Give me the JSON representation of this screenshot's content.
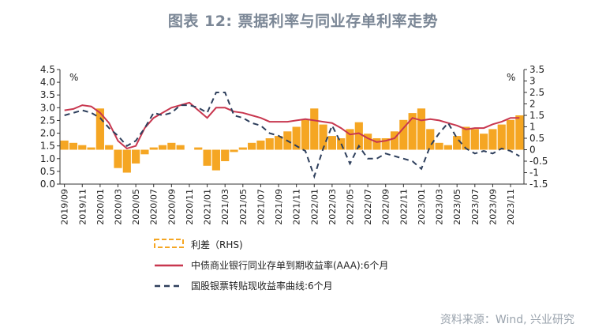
{
  "header": {
    "title": "图表 12: 票据利率与同业存单利率走势"
  },
  "footer": {
    "source": "资料来源：Wind, 兴业研究"
  },
  "chart_data": {
    "type": "line",
    "left_unit": "%",
    "right_unit": "%",
    "left_axis": {
      "min": 0,
      "max": 4.5,
      "ticks": [
        "0.0",
        "0.5",
        "1.0",
        "1.5",
        "2.0",
        "2.5",
        "3.0",
        "3.5",
        "4.0",
        "4.5"
      ]
    },
    "right_axis": {
      "min": -1.5,
      "max": 3.5,
      "ticks": [
        "-1.5",
        "-1",
        "-0.5",
        "0",
        "0.5",
        "1",
        "1.5",
        "2",
        "2.5",
        "3",
        "3.5"
      ]
    },
    "x_ticks": [
      "2019/09",
      "2019/11",
      "2020/01",
      "2020/03",
      "2020/05",
      "2020/07",
      "2020/09",
      "2020/11",
      "2021/01",
      "2021/03",
      "2021/05",
      "2021/07",
      "2021/09",
      "2021/11",
      "2022/01",
      "2022/03",
      "2022/05",
      "2022/07",
      "2022/09",
      "2022/11",
      "2023/01",
      "2023/03",
      "2023/05",
      "2023/07",
      "2023/09",
      "2023/11"
    ],
    "x_range": [
      "2019/09",
      "2023/12"
    ],
    "colors": {
      "spread": "#f5a623",
      "cd": "#c8374f",
      "bill": "#2e3f5c"
    },
    "series": [
      {
        "name": "利差（RHS)",
        "axis": "right",
        "style": "bar",
        "x": [
          "2019/09",
          "2019/10",
          "2019/11",
          "2019/12",
          "2020/01",
          "2020/02",
          "2020/03",
          "2020/04",
          "2020/05",
          "2020/06",
          "2020/07",
          "2020/08",
          "2020/09",
          "2020/10",
          "2020/11",
          "2020/12",
          "2021/01",
          "2021/02",
          "2021/03",
          "2021/04",
          "2021/05",
          "2021/06",
          "2021/07",
          "2021/08",
          "2021/09",
          "2021/10",
          "2021/11",
          "2021/12",
          "2022/01",
          "2022/02",
          "2022/03",
          "2022/04",
          "2022/05",
          "2022/06",
          "2022/07",
          "2022/08",
          "2022/09",
          "2022/10",
          "2022/11",
          "2022/12",
          "2023/01",
          "2023/02",
          "2023/03",
          "2023/04",
          "2023/05",
          "2023/06",
          "2023/07",
          "2023/08",
          "2023/09",
          "2023/10",
          "2023/11",
          "2023/12"
        ],
        "values": [
          0.4,
          0.3,
          0.2,
          0.1,
          1.8,
          0.2,
          -0.8,
          -1.0,
          -0.6,
          -0.2,
          0.1,
          0.2,
          0.3,
          0.2,
          0.0,
          0.1,
          -0.7,
          -0.9,
          -0.5,
          -0.1,
          0.1,
          0.3,
          0.4,
          0.5,
          0.6,
          0.8,
          1.0,
          1.3,
          1.8,
          1.1,
          0.6,
          0.5,
          0.9,
          1.2,
          0.7,
          0.5,
          0.5,
          0.8,
          1.3,
          1.6,
          1.8,
          0.9,
          0.3,
          0.2,
          0.6,
          1.0,
          0.9,
          0.7,
          0.9,
          1.1,
          1.3,
          1.5
        ]
      },
      {
        "name": "中债商业银行同业存单到期收益率(AAA):6个月",
        "axis": "left",
        "style": "line",
        "x": [
          "2019/09",
          "2019/10",
          "2019/11",
          "2019/12",
          "2020/01",
          "2020/02",
          "2020/03",
          "2020/04",
          "2020/05",
          "2020/06",
          "2020/07",
          "2020/08",
          "2020/09",
          "2020/10",
          "2020/11",
          "2020/12",
          "2021/01",
          "2021/02",
          "2021/03",
          "2021/04",
          "2021/05",
          "2021/06",
          "2021/07",
          "2021/08",
          "2021/09",
          "2021/10",
          "2021/11",
          "2021/12",
          "2022/01",
          "2022/02",
          "2022/03",
          "2022/04",
          "2022/05",
          "2022/06",
          "2022/07",
          "2022/08",
          "2022/09",
          "2022/10",
          "2022/11",
          "2022/12",
          "2023/01",
          "2023/02",
          "2023/03",
          "2023/04",
          "2023/05",
          "2023/06",
          "2023/07",
          "2023/08",
          "2023/09",
          "2023/10",
          "2023/11",
          "2023/12"
        ],
        "values": [
          2.9,
          2.95,
          3.1,
          3.05,
          2.8,
          2.4,
          1.7,
          1.4,
          1.5,
          2.2,
          2.6,
          2.8,
          3.0,
          3.1,
          3.2,
          2.9,
          2.6,
          3.0,
          3.0,
          2.85,
          2.8,
          2.7,
          2.6,
          2.45,
          2.45,
          2.45,
          2.5,
          2.55,
          2.5,
          2.45,
          2.4,
          2.2,
          1.95,
          2.0,
          1.8,
          1.65,
          1.7,
          1.8,
          2.2,
          2.6,
          2.5,
          2.55,
          2.5,
          2.4,
          2.3,
          2.15,
          2.2,
          2.2,
          2.35,
          2.45,
          2.6,
          2.6
        ]
      },
      {
        "name": "国股银票转贴现收益率曲线:6个月",
        "axis": "left",
        "style": "dashed",
        "x": [
          "2019/09",
          "2019/10",
          "2019/11",
          "2019/12",
          "2020/01",
          "2020/02",
          "2020/03",
          "2020/04",
          "2020/05",
          "2020/06",
          "2020/07",
          "2020/08",
          "2020/09",
          "2020/10",
          "2020/11",
          "2020/12",
          "2021/01",
          "2021/02",
          "2021/03",
          "2021/04",
          "2021/05",
          "2021/06",
          "2021/07",
          "2021/08",
          "2021/09",
          "2021/10",
          "2021/11",
          "2021/12",
          "2022/01",
          "2022/02",
          "2022/03",
          "2022/04",
          "2022/05",
          "2022/06",
          "2022/07",
          "2022/08",
          "2022/09",
          "2022/10",
          "2022/11",
          "2022/12",
          "2023/01",
          "2023/02",
          "2023/03",
          "2023/04",
          "2023/05",
          "2023/06",
          "2023/07",
          "2023/08",
          "2023/09",
          "2023/10",
          "2023/11",
          "2023/12"
        ],
        "values": [
          2.7,
          2.8,
          2.9,
          2.8,
          2.6,
          2.2,
          1.9,
          1.5,
          1.7,
          2.2,
          2.8,
          2.7,
          2.8,
          3.1,
          3.1,
          3.0,
          2.8,
          3.6,
          3.6,
          2.7,
          2.6,
          2.4,
          2.3,
          2.0,
          1.9,
          1.7,
          1.5,
          1.3,
          0.3,
          1.4,
          2.3,
          1.6,
          0.8,
          1.5,
          1.0,
          1.0,
          1.2,
          1.1,
          1.0,
          0.9,
          0.6,
          1.5,
          2.0,
          2.4,
          1.8,
          1.4,
          1.2,
          1.3,
          1.2,
          1.4,
          1.3,
          1.1
        ]
      }
    ],
    "legend": {
      "placement": "bottom"
    }
  }
}
